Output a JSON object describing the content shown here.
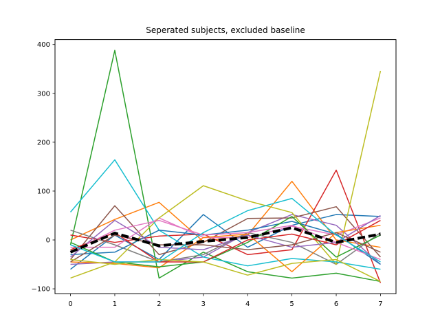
{
  "chart_data": {
    "type": "line",
    "title": "Seperated subjects, excluded baseline",
    "xlabel": "",
    "ylabel": "",
    "x": [
      0,
      1,
      2,
      3,
      4,
      5,
      6,
      7
    ],
    "xlim": [
      -0.35,
      7.35
    ],
    "ylim": [
      -110,
      410
    ],
    "xticks": [
      "0",
      "1",
      "2",
      "3",
      "4",
      "5",
      "6",
      "7"
    ],
    "yticks": [
      -100,
      0,
      100,
      200,
      300,
      400
    ],
    "grid": false,
    "series": [
      {
        "color": "#1f77b4",
        "values": [
          -60,
          10,
          -40,
          52,
          -15,
          30,
          52,
          48
        ]
      },
      {
        "color": "#ff7f0e",
        "values": [
          0,
          42,
          77,
          -3,
          10,
          120,
          0,
          -15
        ]
      },
      {
        "color": "#2ca02c",
        "values": [
          -10,
          388,
          -78,
          -25,
          -65,
          -78,
          -68,
          -85
        ]
      },
      {
        "color": "#d62728",
        "values": [
          10,
          -5,
          8,
          12,
          -30,
          -20,
          143,
          -88
        ]
      },
      {
        "color": "#9467bd",
        "values": [
          -50,
          -45,
          -45,
          -35,
          15,
          52,
          30,
          -50
        ]
      },
      {
        "color": "#8c564b",
        "values": [
          -40,
          70,
          -30,
          -5,
          44,
          45,
          68,
          -35
        ]
      },
      {
        "color": "#e377c2",
        "values": [
          -15,
          -15,
          45,
          5,
          5,
          28,
          10,
          45
        ]
      },
      {
        "color": "#7f7f7f",
        "values": [
          20,
          -10,
          -45,
          -30,
          15,
          -5,
          -50,
          15
        ]
      },
      {
        "color": "#bcbd22",
        "values": [
          -78,
          -45,
          45,
          111,
          80,
          56,
          -50,
          346
        ]
      },
      {
        "color": "#17becf",
        "values": [
          57,
          164,
          20,
          -35,
          -53,
          -38,
          -45,
          -60
        ]
      },
      {
        "color": "#1f77b4",
        "values": [
          -30,
          -25,
          20,
          10,
          20,
          38,
          12,
          -50
        ]
      },
      {
        "color": "#ff7f0e",
        "values": [
          -45,
          -48,
          -57,
          5,
          12,
          -65,
          15,
          30
        ]
      },
      {
        "color": "#2ca02c",
        "values": [
          -5,
          -45,
          -55,
          -45,
          -5,
          48,
          -35,
          10
        ]
      },
      {
        "color": "#d62728",
        "values": [
          -20,
          15,
          -45,
          -45,
          0,
          12,
          -10,
          40
        ]
      },
      {
        "color": "#9467bd",
        "values": [
          -35,
          40,
          -15,
          -20,
          10,
          -15,
          -5,
          50
        ]
      },
      {
        "color": "#8c564b",
        "values": [
          -45,
          10,
          -10,
          -10,
          -20,
          -10,
          15,
          -25
        ]
      },
      {
        "color": "#e377c2",
        "values": [
          -25,
          20,
          40,
          10,
          15,
          30,
          -5,
          -40
        ]
      },
      {
        "color": "#bcbd22",
        "values": [
          -40,
          -50,
          -40,
          -45,
          -72,
          -48,
          -40,
          -85
        ]
      },
      {
        "color": "#17becf",
        "values": [
          -10,
          -45,
          -45,
          15,
          60,
          85,
          10,
          -45
        ]
      }
    ],
    "mean_series": {
      "color": "#000000",
      "style": "dashed",
      "values": [
        -25,
        14,
        -12,
        -3,
        5,
        25,
        -5,
        12
      ]
    }
  }
}
